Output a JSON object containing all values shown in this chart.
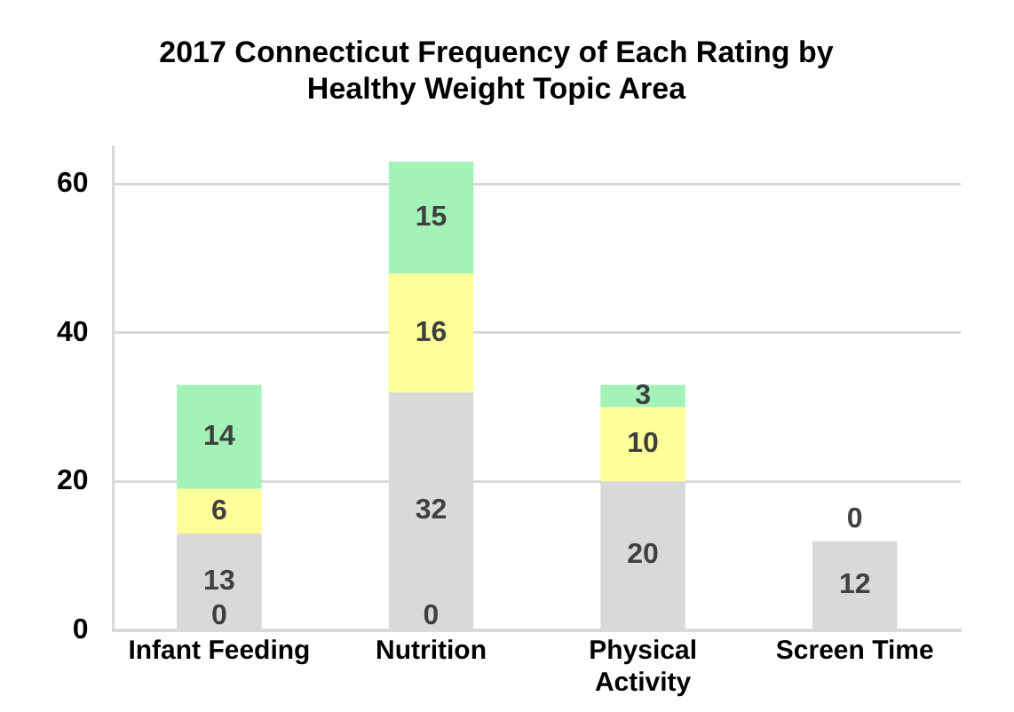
{
  "chart_data": {
    "type": "bar",
    "title": "2017 Connecticut Frequency of Each Rating by Healthy Weight Topic Area",
    "categories": [
      "Infant Feeding",
      "Nutrition",
      "Physical Activity",
      "Screen Time"
    ],
    "stacked": true,
    "data_labels": true,
    "grid": "y",
    "legend": false,
    "ylim": [
      0,
      65
    ],
    "yticks": [
      0,
      20,
      40,
      60
    ],
    "series": [
      {
        "color": "#d9d9d9",
        "values": [
          13,
          32,
          20,
          12
        ]
      },
      {
        "color": "#ffff99",
        "values": [
          6,
          16,
          10,
          0
        ]
      },
      {
        "color": "#a3f2b8",
        "values": [
          14,
          15,
          3,
          null
        ]
      }
    ],
    "annotations": [
      {
        "text": "0",
        "x": "Infant Feeding",
        "y": 0
      },
      {
        "text": "0",
        "x": "Nutrition",
        "y": 0
      }
    ]
  }
}
